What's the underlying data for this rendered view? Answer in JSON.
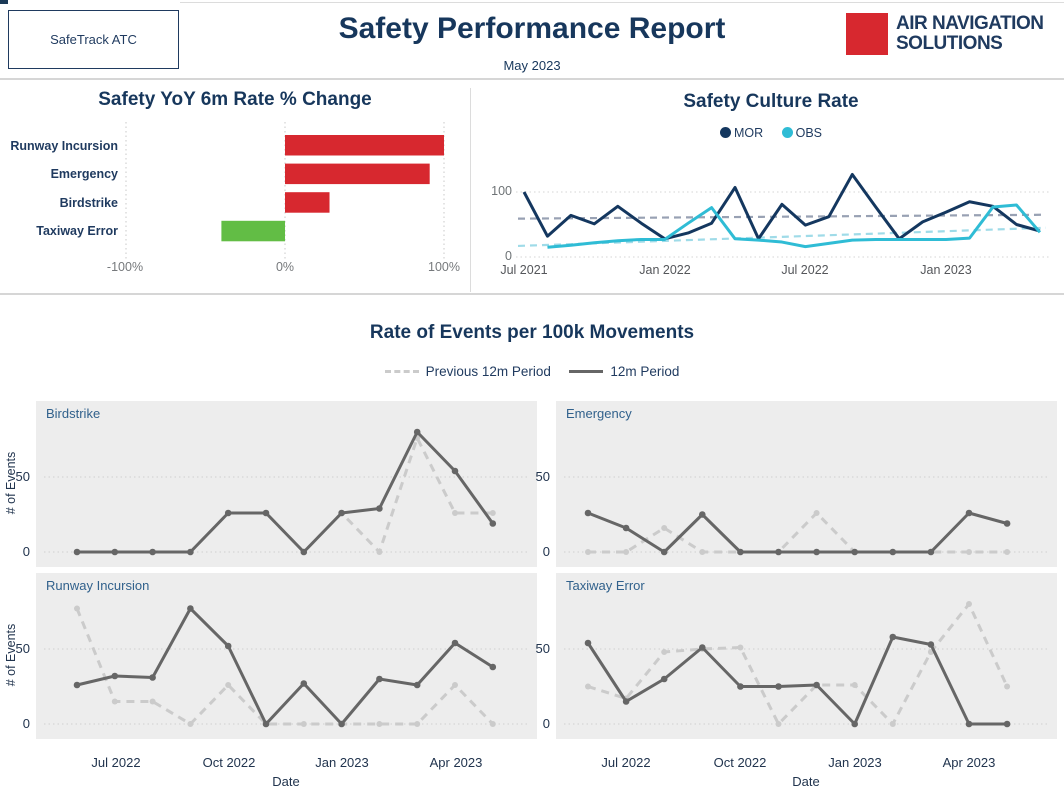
{
  "header": {
    "brand": "SafeTrack ATC",
    "title": "Safety Performance Report",
    "subtitle": "May 2023",
    "logo_line1": "AIR NAVIGATION",
    "logo_line2": "SOLUTIONS",
    "logo_color": "#D7282F"
  },
  "chart_data": [
    {
      "id": "yoy-change",
      "type": "bar",
      "orientation": "horizontal",
      "title": "Safety YoY 6m Rate % Change",
      "categories": [
        "Runway Incursion",
        "Emergency",
        "Birdstrike",
        "Taxiway Error"
      ],
      "values": [
        100,
        91,
        28,
        -40
      ],
      "unit": "%",
      "xlim": [
        -100,
        100
      ],
      "x_tick_labels": [
        "-100%",
        "0%",
        "100%"
      ],
      "x_tick_values": [
        -100,
        0,
        100
      ],
      "positive_color": "#D7282F",
      "negative_color": "#62BD45",
      "grid": "dotted-vertical"
    },
    {
      "id": "safety-culture",
      "type": "line",
      "title": "Safety Culture Rate",
      "x": [
        "Jul 2021",
        "Aug 2021",
        "Sep 2021",
        "Oct 2021",
        "Nov 2021",
        "Dec 2021",
        "Jan 2022",
        "Feb 2022",
        "Mar 2022",
        "Apr 2022",
        "May 2022",
        "Jun 2022",
        "Jul 2022",
        "Aug 2022",
        "Sep 2022",
        "Oct 2022",
        "Nov 2022",
        "Dec 2022",
        "Jan 2023",
        "Feb 2023",
        "Mar 2023",
        "Apr 2023",
        "May 2023"
      ],
      "x_tick_indices": [
        0,
        6,
        12,
        18
      ],
      "x_tick_labels": [
        "Jul 2021",
        "Jan 2022",
        "Jul 2022",
        "Jan 2023"
      ],
      "y_ticks": [
        0,
        100
      ],
      "ylim": [
        0,
        140
      ],
      "legend_position": "top-center",
      "series": [
        {
          "name": "MOR",
          "color": "#14375F",
          "values": [
            100,
            32,
            64,
            51,
            78,
            52,
            28,
            37,
            52,
            107,
            28,
            81,
            49,
            62,
            127,
            77,
            28,
            54,
            69,
            85,
            78,
            50,
            40
          ]
        },
        {
          "name": "OBS",
          "color": "#2FBCD5",
          "values": [
            null,
            15,
            18,
            22,
            25,
            27,
            27,
            52,
            76,
            28,
            26,
            23,
            16,
            21,
            26,
            27,
            27,
            27,
            27,
            29,
            77,
            80,
            38
          ]
        }
      ],
      "trendlines": [
        {
          "name": "MOR-trend",
          "color": "#98A1B3",
          "start": 59,
          "end": 65
        },
        {
          "name": "OBS-trend",
          "color": "#9FDBE8",
          "start": 17,
          "end": 45
        }
      ]
    },
    {
      "id": "events-per-100k",
      "type": "line-small-multiples",
      "title": "Rate of Events per 100k Movements",
      "legend": [
        "Previous 12m Period",
        "12m Period"
      ],
      "previous_color": "#CBCBCB",
      "current_color": "#666666",
      "xlabel": "Date",
      "ylabel": "# of Events",
      "x": [
        "Jun 2022",
        "Jul 2022",
        "Aug 2022",
        "Sep 2022",
        "Oct 2022",
        "Nov 2022",
        "Dec 2022",
        "Jan 2023",
        "Feb 2023",
        "Mar 2023",
        "Apr 2023",
        "May 2023"
      ],
      "x_tick_indices": [
        1,
        4,
        7,
        10
      ],
      "x_tick_labels": [
        "Jul 2022",
        "Oct 2022",
        "Jan 2023",
        "Apr 2023"
      ],
      "y_ticks": [
        0,
        50
      ],
      "ylim": [
        0,
        90
      ],
      "panels": [
        {
          "title": "Birdstrike",
          "current": [
            0,
            0,
            0,
            0,
            26,
            26,
            0,
            26,
            29,
            80,
            54,
            19
          ],
          "previous": [
            0,
            0,
            0,
            0,
            26,
            26,
            0,
            26,
            0,
            76,
            26,
            26
          ]
        },
        {
          "title": "Emergency",
          "current": [
            26,
            16,
            0,
            25,
            0,
            0,
            0,
            0,
            0,
            0,
            26,
            19
          ],
          "previous": [
            0,
            0,
            16,
            0,
            0,
            0,
            26,
            0,
            0,
            0,
            0,
            0
          ]
        },
        {
          "title": "Runway Incursion",
          "current": [
            26,
            32,
            31,
            77,
            52,
            0,
            27,
            0,
            30,
            26,
            54,
            38
          ],
          "previous": [
            77,
            15,
            15,
            0,
            26,
            0,
            0,
            0,
            0,
            0,
            26,
            0
          ]
        },
        {
          "title": "Taxiway Error",
          "current": [
            54,
            15,
            30,
            51,
            25,
            25,
            26,
            0,
            58,
            53,
            0,
            0
          ],
          "previous": [
            25,
            17,
            48,
            50,
            51,
            0,
            26,
            26,
            0,
            48,
            80,
            25
          ]
        }
      ]
    }
  ]
}
